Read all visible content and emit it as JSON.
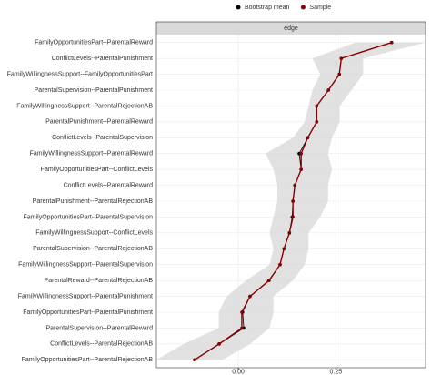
{
  "chart_data": {
    "type": "interval_dot",
    "panel_label": "edge",
    "categories": [
      "FamilyOpportunitiesPart--ParentalReward",
      "ConflictLevels--ParentalPunishment",
      "FamilyWillingnessSupport--FamilyOpportunitiesPart",
      "ParentalSupervision--ParentalPunishment",
      "FamilyWillingnessSupport--ParentalRejectionAB",
      "ParentalPunishment--ParentalReward",
      "ConflictLevels--ParentalSupervision",
      "FamilyWillingnessSupport--ParentalReward",
      "FamilyOpportunitiesPart--ConflictLevels",
      "ConflictLevels--ParentalReward",
      "ParentalPunishment--ParentalRejectionAB",
      "FamilyOpportunitiesPart--ParentalSupervision",
      "FamilyWillingnessSupport--ConflictLevels",
      "ParentalSupervision--ParentalRejectionAB",
      "FamilyWillingnessSupport--ParentalSupervision",
      "ParentalReward--ParentalRejectionAB",
      "FamilyWillingnessSupport--ParentalPunishment",
      "FamilyOpportunitiesPart--ParentalPunishment",
      "ParentalSupervision--ParentalReward",
      "ConflictLevels--ParentalRejectionAB",
      "FamilyOpportunitiesPart--ParentalRejectionAB"
    ],
    "band": {
      "color": "#d9d9d9",
      "lower": [
        0.3,
        0.19,
        0.21,
        0.19,
        0.18,
        0.17,
        0.14,
        0.07,
        0.09,
        0.1,
        0.1,
        0.09,
        0.08,
        0.09,
        0.08,
        0.02,
        -0.03,
        -0.05,
        -0.05,
        -0.14,
        -0.21
      ],
      "upper": [
        0.48,
        0.32,
        0.32,
        0.29,
        0.26,
        0.26,
        0.24,
        0.23,
        0.24,
        0.23,
        0.23,
        0.21,
        0.18,
        0.18,
        0.17,
        0.14,
        0.09,
        0.09,
        0.08,
        0.03,
        -0.04
      ]
    },
    "series": [
      {
        "name": "Bootstrap mean",
        "color": "#000000",
        "values": [
          0.393,
          0.264,
          0.259,
          0.231,
          0.201,
          0.201,
          0.178,
          0.156,
          0.161,
          0.145,
          0.14,
          0.138,
          0.131,
          0.117,
          0.107,
          0.078,
          0.03,
          0.011,
          0.014,
          -0.049,
          -0.112
        ]
      },
      {
        "name": "Sample",
        "color": "#8b0000",
        "values": [
          0.393,
          0.264,
          0.259,
          0.231,
          0.201,
          0.201,
          0.178,
          0.161,
          0.161,
          0.145,
          0.14,
          0.14,
          0.131,
          0.117,
          0.107,
          0.079,
          0.03,
          0.009,
          0.009,
          -0.049,
          -0.112
        ]
      }
    ],
    "xlim": [
      -0.21,
      0.48
    ],
    "xticks": [
      {
        "value": 0,
        "label": "0.00"
      },
      {
        "value": 0.25,
        "label": "0.25"
      }
    ],
    "grid": true
  }
}
